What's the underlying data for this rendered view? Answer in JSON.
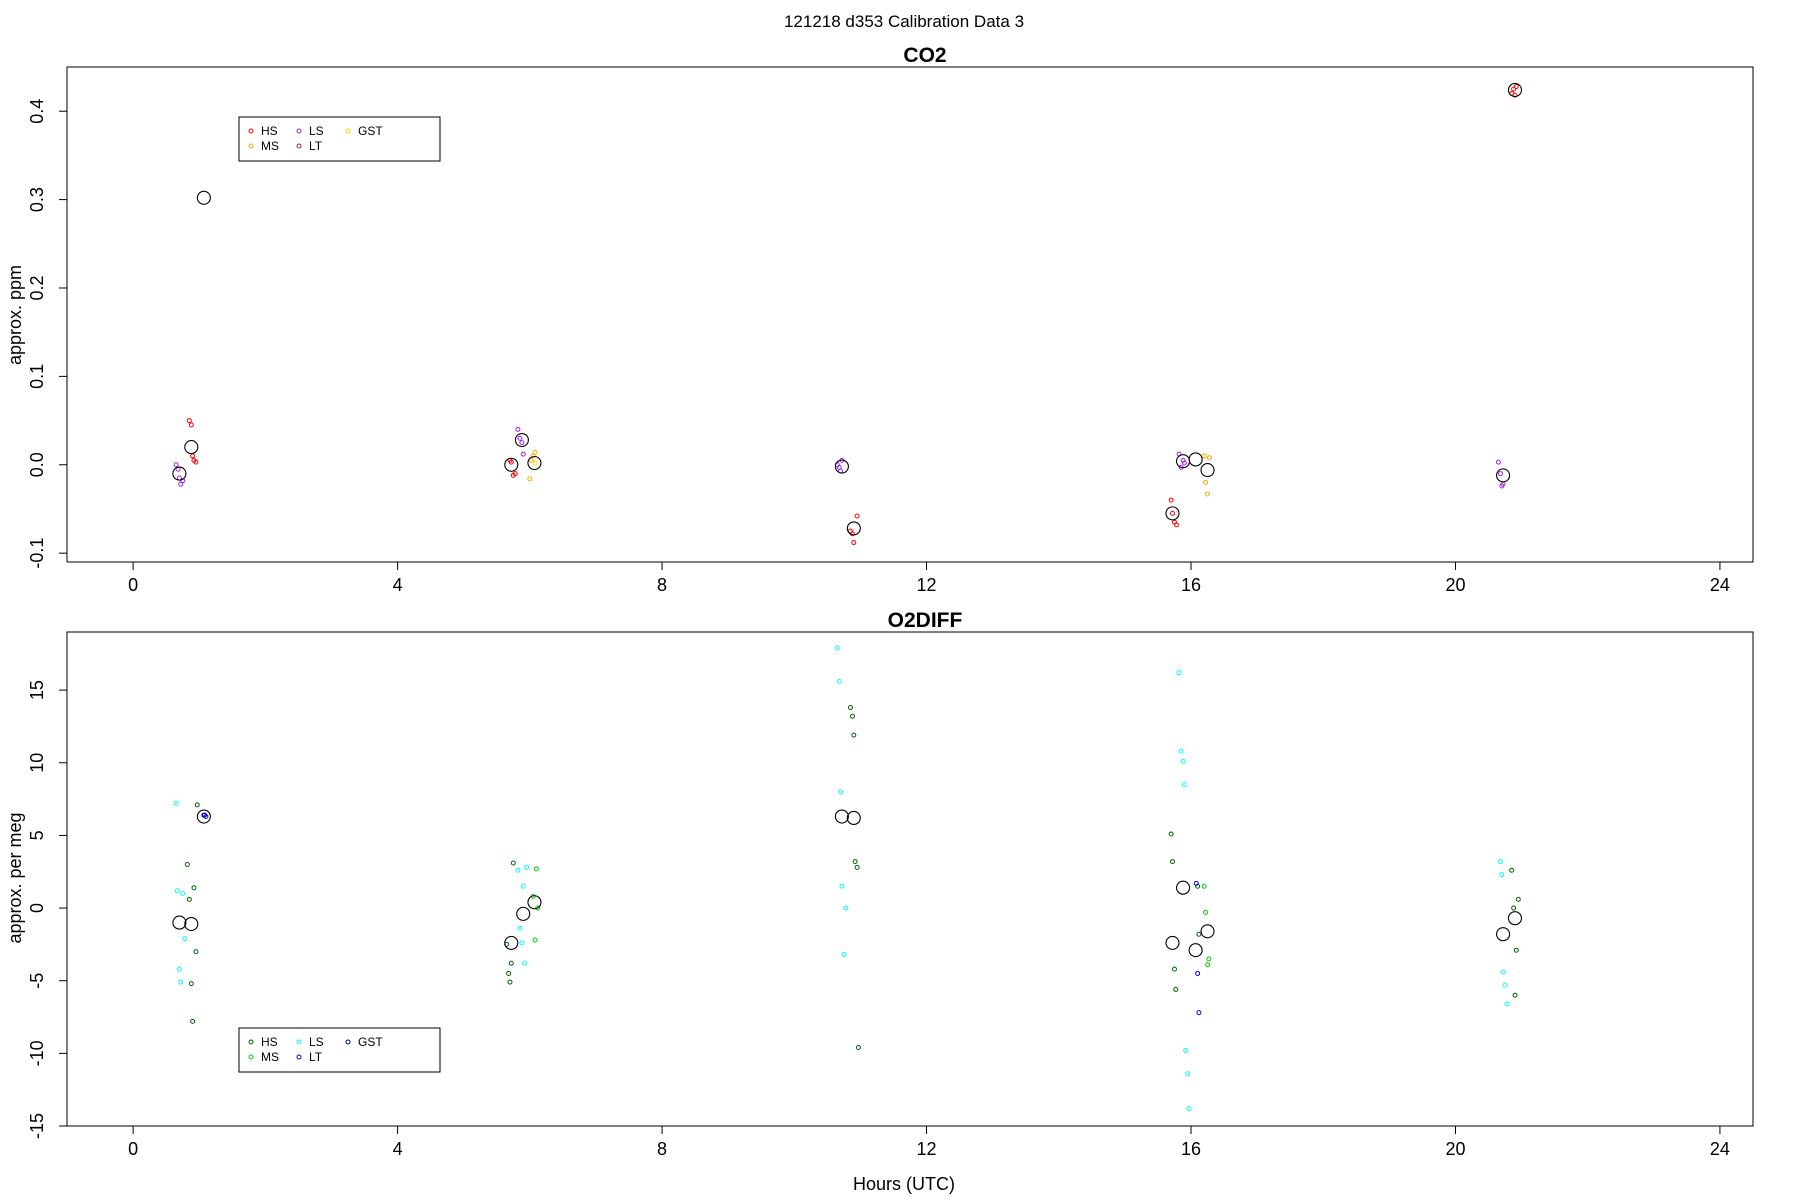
{
  "page_title": "121218   d353   Calibration Data 3",
  "chart_data": [
    {
      "type": "scatter",
      "title": "CO2",
      "xlabel": "",
      "ylabel": "approx. ppm",
      "xlim": [
        -1,
        24.5
      ],
      "ylim": [
        -0.11,
        0.45
      ],
      "xticks": [
        0,
        4,
        8,
        12,
        16,
        20,
        24
      ],
      "xtick_labels": [
        "0",
        "4",
        "8",
        "12",
        "16",
        "20",
        "24"
      ],
      "yticks": [
        -0.1,
        0.0,
        0.1,
        0.2,
        0.3,
        0.4
      ],
      "ytick_labels": [
        "-0.1",
        "0.0",
        "0.1",
        "0.2",
        "0.3",
        "0.4"
      ],
      "legend_position": "top-left",
      "legend": [
        {
          "name": "HS",
          "color": "#ff0000"
        },
        {
          "name": "MS",
          "color": "#ffa500"
        },
        {
          "name": "LS",
          "color": "#a020f0"
        },
        {
          "name": "LT",
          "color": "#b22222"
        },
        {
          "name": "GST",
          "color": "#ffd700"
        }
      ],
      "series": [
        {
          "name": "HS",
          "color": "#ff0000",
          "x": [
            0.85,
            0.88,
            0.9,
            0.92,
            0.95,
            5.7,
            5.72,
            5.75,
            5.78,
            10.85,
            10.88,
            10.9,
            10.95,
            15.7,
            15.72,
            15.75,
            15.78,
            20.85,
            20.88,
            20.9,
            20.92
          ],
          "y": [
            0.05,
            0.045,
            0.01,
            0.005,
            0.003,
            0.005,
            0.003,
            -0.012,
            -0.01,
            -0.075,
            -0.078,
            -0.088,
            -0.058,
            -0.04,
            -0.055,
            -0.065,
            -0.068,
            0.42,
            0.425,
            0.418,
            0.428
          ]
        },
        {
          "name": "MS",
          "color": "#ffa500",
          "x": [
            6.0,
            6.02,
            6.05,
            6.08,
            16.2,
            16.22,
            16.25,
            16.28
          ],
          "y": [
            -0.016,
            0.005,
            0.01,
            0.014,
            0.01,
            -0.02,
            -0.033,
            0.008
          ]
        },
        {
          "name": "LS",
          "color": "#a020f0",
          "x": [
            0.65,
            0.68,
            0.7,
            0.72,
            0.75,
            5.82,
            5.85,
            5.88,
            5.9,
            10.65,
            10.68,
            10.7,
            10.72,
            15.82,
            15.85,
            15.88,
            15.9,
            20.65,
            20.68,
            20.7,
            20.72
          ],
          "y": [
            0.0,
            -0.005,
            -0.015,
            -0.022,
            -0.018,
            0.04,
            0.03,
            0.025,
            0.012,
            0.0,
            -0.003,
            -0.007,
            0.005,
            0.012,
            -0.003,
            0.005,
            0.002,
            0.003,
            -0.01,
            -0.024,
            -0.022
          ]
        },
        {
          "name": "LT",
          "color": "#b22222",
          "x": [],
          "y": []
        },
        {
          "name": "GST",
          "color": "#ffd700",
          "x": [
            6.08
          ],
          "y": [
            0.002
          ]
        },
        {
          "name": "mean",
          "color": "#000000",
          "x": [
            0.7,
            0.88,
            1.07,
            5.72,
            5.88,
            6.07,
            10.72,
            10.9,
            15.72,
            15.88,
            16.07,
            16.25,
            20.72,
            20.9
          ],
          "y": [
            -0.01,
            0.02,
            0.302,
            0.0,
            0.028,
            0.002,
            -0.002,
            -0.072,
            -0.055,
            0.004,
            0.006,
            -0.006,
            -0.012,
            0.424
          ]
        }
      ]
    },
    {
      "type": "scatter",
      "title": "O2DIFF",
      "xlabel": "Hours (UTC)",
      "ylabel": "approx. per meg",
      "xlim": [
        -1,
        24.5
      ],
      "ylim": [
        -15,
        19
      ],
      "xticks": [
        0,
        4,
        8,
        12,
        16,
        20,
        24
      ],
      "xtick_labels": [
        "0",
        "4",
        "8",
        "12",
        "16",
        "20",
        "24"
      ],
      "yticks": [
        -15,
        -10,
        -5,
        0,
        5,
        10,
        15
      ],
      "ytick_labels": [
        "-15",
        "-10",
        "-5",
        "0",
        "5",
        "10",
        "15"
      ],
      "legend_position": "bottom-left",
      "legend": [
        {
          "name": "HS",
          "color": "#006400"
        },
        {
          "name": "MS",
          "color": "#00cd00"
        },
        {
          "name": "LS",
          "color": "#00ffff"
        },
        {
          "name": "LT",
          "color": "#0000ff"
        },
        {
          "name": "GST",
          "color": "#00008b"
        }
      ],
      "series": [
        {
          "name": "HS",
          "color": "#006400",
          "x": [
            0.82,
            0.85,
            0.88,
            0.9,
            0.92,
            0.95,
            0.97,
            5.65,
            5.68,
            5.7,
            5.72,
            5.75,
            10.85,
            10.88,
            10.9,
            10.92,
            10.95,
            10.97,
            15.7,
            15.72,
            15.75,
            15.77,
            16.1,
            16.12,
            20.85,
            20.88,
            20.9,
            20.92,
            20.95
          ],
          "y": [
            3.0,
            0.6,
            -5.2,
            -7.8,
            1.4,
            -3.0,
            7.1,
            -2.5,
            -4.5,
            -5.1,
            -3.8,
            3.1,
            13.8,
            13.2,
            11.9,
            3.2,
            2.8,
            -9.6,
            5.1,
            3.2,
            -4.2,
            -5.6,
            1.5,
            -1.8,
            2.6,
            0.0,
            -6.0,
            -2.9,
            0.6
          ]
        },
        {
          "name": "MS",
          "color": "#00cd00",
          "x": [
            6.05,
            6.08,
            6.1,
            6.12,
            16.2,
            16.22,
            16.25,
            16.27
          ],
          "y": [
            0.8,
            -2.2,
            2.7,
            0.0,
            1.5,
            -0.3,
            -3.9,
            -3.5
          ]
        },
        {
          "name": "LS",
          "color": "#00ffff",
          "x": [
            0.65,
            0.67,
            0.7,
            0.72,
            0.75,
            0.78,
            5.82,
            5.85,
            5.88,
            5.9,
            5.92,
            5.95,
            10.65,
            10.68,
            10.7,
            10.72,
            10.75,
            10.78,
            15.82,
            15.85,
            15.88,
            15.9,
            15.92,
            15.95,
            15.97,
            20.68,
            20.7,
            20.72,
            20.75,
            20.78
          ],
          "y": [
            7.2,
            1.2,
            -4.2,
            -5.1,
            1.0,
            -2.1,
            2.6,
            -1.4,
            -2.4,
            1.5,
            -3.8,
            2.8,
            17.9,
            15.6,
            8.0,
            1.5,
            -3.2,
            0.0,
            16.2,
            10.8,
            10.1,
            8.5,
            -9.8,
            -11.4,
            -13.8,
            3.2,
            2.3,
            -4.4,
            -5.3,
            -6.6
          ]
        },
        {
          "name": "LT",
          "color": "#0000ff",
          "x": [
            1.07,
            1.1,
            16.08,
            16.1,
            16.12
          ],
          "y": [
            6.4,
            6.3,
            1.7,
            -4.5,
            -7.2
          ]
        },
        {
          "name": "GST",
          "color": "#00008b",
          "x": [
            1.08
          ],
          "y": [
            6.4
          ]
        },
        {
          "name": "mean",
          "color": "#000000",
          "x": [
            0.7,
            0.88,
            1.07,
            5.72,
            5.9,
            6.07,
            10.72,
            10.9,
            15.72,
            15.88,
            16.07,
            16.25,
            20.72,
            20.9
          ],
          "y": [
            -1.0,
            -1.1,
            6.3,
            -2.4,
            -0.4,
            0.4,
            6.3,
            6.2,
            -2.4,
            1.4,
            -2.9,
            -1.6,
            -1.8,
            -0.7
          ]
        }
      ]
    }
  ]
}
